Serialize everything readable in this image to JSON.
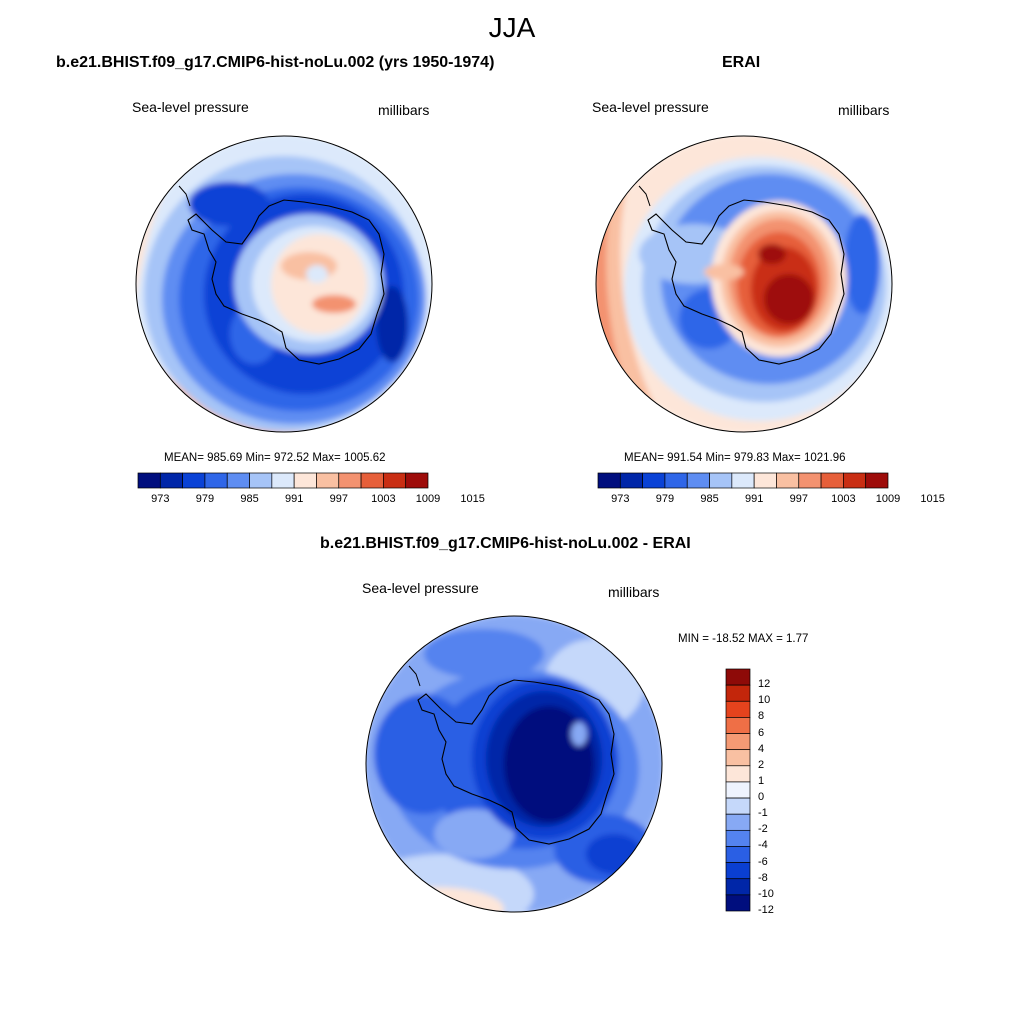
{
  "figure": {
    "title": "JJA"
  },
  "colors": {
    "palette13": [
      "#000e7e",
      "#0026a8",
      "#0a42d6",
      "#2f66e8",
      "#5e8df2",
      "#a6c4f7",
      "#dce9fb",
      "#fde6d9",
      "#f9c0a2",
      "#f39270",
      "#e65f3a",
      "#c92e13",
      "#9e0c0a"
    ],
    "diff_palette": [
      "#000e7e",
      "#0026a8",
      "#0a3fd2",
      "#2a5fe4",
      "#5483ef",
      "#87a9f4",
      "#c5d8fa",
      "#eef3fe",
      "#fde6d9",
      "#f9c0a2",
      "#f59a74",
      "#ef6f46",
      "#e5431d",
      "#c3260b",
      "#8e0a08"
    ],
    "coast": "#000000"
  },
  "panels": {
    "model": {
      "title": "b.e21.BHIST.f09_g17.CMIP6-hist-noLu.002 (yrs 1950-1974)",
      "variable": "Sea-level pressure",
      "units": "millibars",
      "stats": "MEAN= 985.69  Min= 972.52  Max= 1005.62",
      "colorbar_ticks": [
        "973",
        "979",
        "985",
        "991",
        "997",
        "1003",
        "1009",
        "1015"
      ]
    },
    "obs": {
      "title": "ERAI",
      "variable": "Sea-level pressure",
      "units": "millibars",
      "stats": "MEAN= 991.54  Min= 979.83  Max= 1021.96",
      "colorbar_ticks": [
        "973",
        "979",
        "985",
        "991",
        "997",
        "1003",
        "1009",
        "1015"
      ]
    },
    "diff": {
      "title": "b.e21.BHIST.f09_g17.CMIP6-hist-noLu.002 - ERAI",
      "variable": "Sea-level pressure",
      "units": "millibars",
      "stats": "MIN = -18.52 MAX =   1.77",
      "colorbar_ticks": [
        "12",
        "10",
        "8",
        "6",
        "4",
        "2",
        "1",
        "0",
        "-1",
        "-2",
        "-4",
        "-6",
        "-8",
        "-10",
        "-12"
      ]
    }
  }
}
